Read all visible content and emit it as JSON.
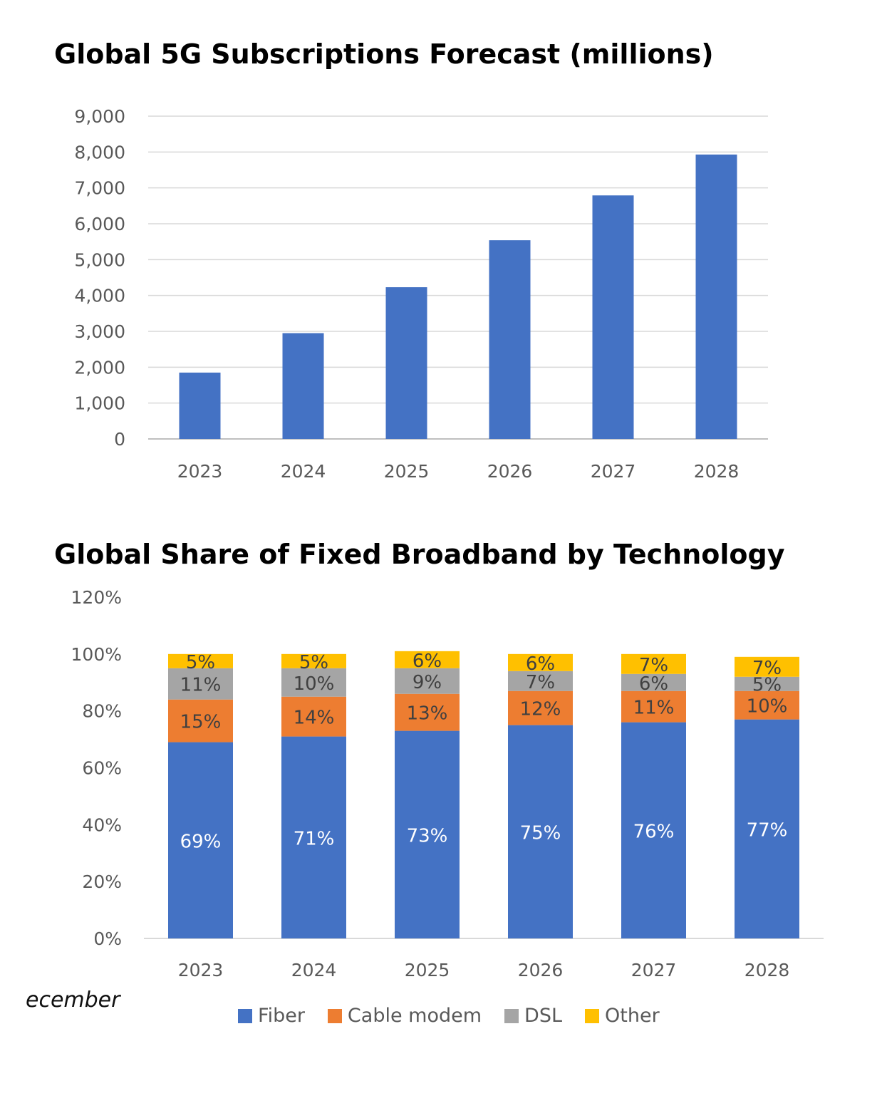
{
  "chart_data": [
    {
      "type": "bar",
      "title": "Global 5G Subscriptions Forecast (millions)",
      "categories": [
        "2023",
        "2024",
        "2025",
        "2026",
        "2027",
        "2028"
      ],
      "values": [
        1850,
        2950,
        4230,
        5540,
        6790,
        7930
      ],
      "ylim": [
        0,
        9000
      ],
      "yticks": [
        "0",
        "1,000",
        "2,000",
        "3,000",
        "4,000",
        "5,000",
        "6,000",
        "7,000",
        "8,000",
        "9,000"
      ],
      "grid": true,
      "color": "#4472C4"
    },
    {
      "type": "bar",
      "stacked": true,
      "title": "Global Share of Fixed Broadband by Technology",
      "categories": [
        "2023",
        "2024",
        "2025",
        "2026",
        "2027",
        "2028"
      ],
      "ylim": [
        0,
        120
      ],
      "yticks": [
        "0%",
        "20%",
        "40%",
        "60%",
        "80%",
        "100%",
        "120%"
      ],
      "grid": false,
      "legend": "bottom",
      "series": [
        {
          "name": "Fiber",
          "color": "#4472C4",
          "values": [
            69,
            71,
            73,
            75,
            76,
            77
          ],
          "labels": [
            "69%",
            "71%",
            "73%",
            "75%",
            "76%",
            "77%"
          ]
        },
        {
          "name": "Cable modem",
          "color": "#ED7D31",
          "values": [
            15,
            14,
            13,
            12,
            11,
            10
          ],
          "labels": [
            "15%",
            "14%",
            "13%",
            "12%",
            "11%",
            "10%"
          ]
        },
        {
          "name": "DSL",
          "color": "#A5A5A5",
          "values": [
            11,
            10,
            9,
            7,
            6,
            5
          ],
          "labels": [
            "11%",
            "10%",
            "9%",
            "7%",
            "6%",
            "5%"
          ]
        },
        {
          "name": "Other",
          "color": "#FFC000",
          "values": [
            5,
            5,
            6,
            6,
            7,
            7
          ],
          "labels": [
            "5%",
            "5%",
            "6%",
            "6%",
            "7%",
            "7%"
          ]
        }
      ]
    }
  ],
  "footer": {
    "cutoff_text": "ecember"
  }
}
